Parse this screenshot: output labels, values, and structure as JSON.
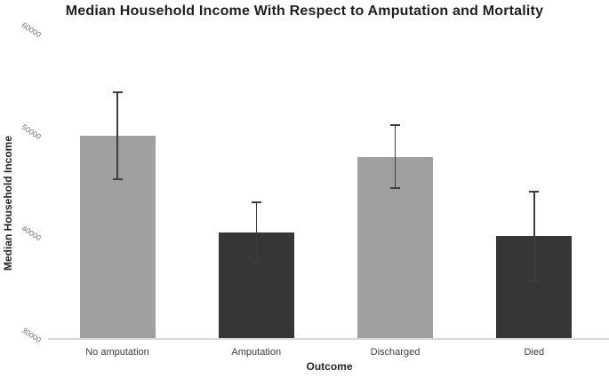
{
  "chart_data": {
    "type": "bar",
    "title": "Median Household Income With Respect to Amputation and Mortality",
    "xlabel": "Outcome",
    "ylabel": "Median Household Income",
    "categories": [
      "No amputation",
      "Amputation",
      "Discharged",
      "Died"
    ],
    "values": [
      49900,
      40400,
      47800,
      40000
    ],
    "error_bars": [
      4300,
      2900,
      3100,
      4400
    ],
    "bar_colors": [
      "#a0a0a0",
      "#363636",
      "#a0a0a0",
      "#363636"
    ],
    "ylim": [
      30000,
      60000
    ],
    "yticks": [
      30000,
      40000,
      50000,
      60000
    ],
    "ytick_labels": [
      "30000",
      "40000",
      "50000",
      "60000"
    ],
    "grid": "off",
    "legend": "none",
    "ytick_label_rotation_deg": 33
  },
  "colors": {
    "axis_line": "#d9d9d9",
    "error_bar": "#3d3d3d",
    "title_text": "#1f1f1f",
    "axis_label_text": "#262626",
    "category_text": "#3d3d3d",
    "ytick_text": "#6e6e6e"
  }
}
